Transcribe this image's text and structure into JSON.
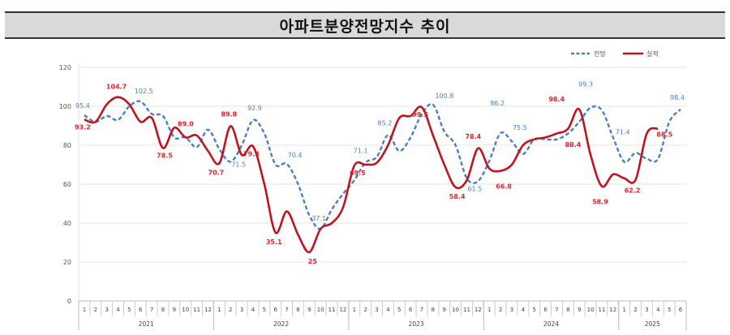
{
  "title": "아파트분양전망지수 추이",
  "legend": [
    {
      "label": "전망",
      "color": "#4a7fc6",
      "style": "dashed"
    },
    {
      "label": "실적",
      "color": "#c0141e",
      "style": "solid"
    }
  ],
  "chart_data": {
    "type": "line",
    "title": "아파트분양전망지수 추이",
    "xlabel": "",
    "ylabel": "",
    "ylim": [
      0,
      120
    ],
    "yticks": [
      0,
      20,
      40,
      60,
      80,
      100,
      120
    ],
    "grid": true,
    "legend_position": "top-right",
    "years": [
      {
        "label": "2021",
        "months": 12
      },
      {
        "label": "2022",
        "months": 12
      },
      {
        "label": "2023",
        "months": 12
      },
      {
        "label": "2024",
        "months": 12
      },
      {
        "label": "2025",
        "months": 6
      }
    ],
    "categories": [
      "2021-1",
      "2021-2",
      "2021-3",
      "2021-4",
      "2021-5",
      "2021-6",
      "2021-7",
      "2021-8",
      "2021-9",
      "2021-10",
      "2021-11",
      "2021-12",
      "2022-1",
      "2022-2",
      "2022-3",
      "2022-4",
      "2022-5",
      "2022-6",
      "2022-7",
      "2022-8",
      "2022-9",
      "2022-10",
      "2022-11",
      "2022-12",
      "2023-1",
      "2023-2",
      "2023-3",
      "2023-4",
      "2023-5",
      "2023-6",
      "2023-7",
      "2023-8",
      "2023-9",
      "2023-10",
      "2023-11",
      "2023-12",
      "2024-1",
      "2024-2",
      "2024-3",
      "2024-4",
      "2024-5",
      "2024-6",
      "2024-7",
      "2024-8",
      "2024-9",
      "2024-10",
      "2024-11",
      "2024-12",
      "2025-1",
      "2025-2",
      "2025-3",
      "2025-4",
      "2025-5",
      "2025-6"
    ],
    "series": [
      {
        "name": "전망",
        "color": "#4a7fc6",
        "values": [
          95.4,
          92,
          95,
          93,
          100,
          102.5,
          96,
          95,
          84,
          84,
          79,
          88,
          78,
          71.5,
          80,
          92.9,
          86,
          70,
          70.4,
          60,
          44,
          37.1,
          47,
          55,
          62,
          71.1,
          74,
          85.2,
          77,
          84,
          96,
          100.8,
          87,
          80,
          63,
          61.5,
          72,
          86.2,
          82,
          75.5,
          83,
          83,
          83,
          86,
          92,
          99.3,
          98,
          84,
          71.4,
          76,
          73,
          73,
          92,
          98.4
        ]
      },
      {
        "name": "실적",
        "color": "#c0141e",
        "values": [
          93.2,
          92,
          101,
          104.7,
          101,
          92,
          94,
          78.5,
          89.0,
          84,
          85,
          77,
          70.7,
          89.8,
          75,
          79.4,
          60,
          35.1,
          46,
          34,
          25,
          37,
          40,
          48,
          69.5,
          70,
          71,
          80,
          94,
          95,
          99.5,
          85,
          70,
          58.4,
          62,
          78.4,
          68,
          66.8,
          70,
          80,
          83,
          84,
          86,
          88.4,
          98.4,
          75,
          58.9,
          65,
          63,
          62.2,
          86,
          88.5
        ]
      }
    ],
    "annotations": {
      "전망": [
        {
          "index": 0,
          "label": "95.4"
        },
        {
          "index": 5,
          "label": "102.5"
        },
        {
          "index": 13,
          "label": "71.5"
        },
        {
          "index": 15,
          "label": "92.9"
        },
        {
          "index": 18,
          "label": "70.4"
        },
        {
          "index": 21,
          "label": "37.1"
        },
        {
          "index": 25,
          "label": "71.1"
        },
        {
          "index": 27,
          "label": "85.2"
        },
        {
          "index": 31,
          "label": "100.8"
        },
        {
          "index": 35,
          "label": "61.5"
        },
        {
          "index": 37,
          "label": "86.2"
        },
        {
          "index": 39,
          "label": "75.5"
        },
        {
          "index": 45,
          "label": "99.3"
        },
        {
          "index": 48,
          "label": "71.4"
        },
        {
          "index": 53,
          "label": "98.4"
        }
      ],
      "실적": [
        {
          "index": 0,
          "label": "93.2"
        },
        {
          "index": 3,
          "label": "104.7"
        },
        {
          "index": 7,
          "label": "78.5"
        },
        {
          "index": 8,
          "label": "89.0"
        },
        {
          "index": 12,
          "label": "70.7"
        },
        {
          "index": 13,
          "label": "89.8"
        },
        {
          "index": 15,
          "label": "79.4"
        },
        {
          "index": 17,
          "label": "35.1"
        },
        {
          "index": 20,
          "label": "25"
        },
        {
          "index": 24,
          "label": "69.5"
        },
        {
          "index": 30,
          "label": "99.5"
        },
        {
          "index": 33,
          "label": "58.4"
        },
        {
          "index": 35,
          "label": "78.4"
        },
        {
          "index": 37,
          "label": "66.8"
        },
        {
          "index": 43,
          "label": "88.4"
        },
        {
          "index": 44,
          "label": "98.4"
        },
        {
          "index": 46,
          "label": "58.9"
        },
        {
          "index": 49,
          "label": "62.2"
        },
        {
          "index": 51,
          "label": "88.5"
        }
      ]
    }
  }
}
